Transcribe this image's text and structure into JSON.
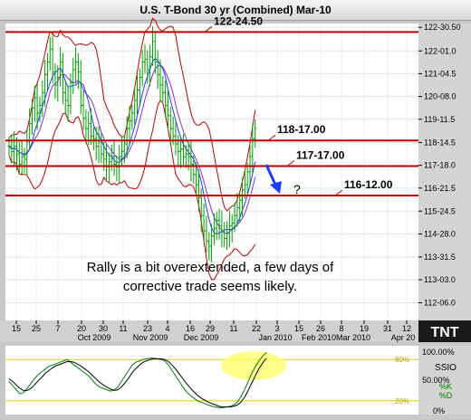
{
  "title": "U.S. T-Bond 30 yr (Combined) Mar-10",
  "chart_data": [
    {
      "type": "ohlc",
      "ylabel": "",
      "ylim": [
        111.5,
        123.1
      ],
      "y_ticks": [
        "122-30.50",
        "122-01.0",
        "121-04.5",
        "120-08.0",
        "119-11.5",
        "118-14.5",
        "117-18.0",
        "116-21.5",
        "115-24.5",
        "114-28.0",
        "113-31.5",
        "113-03.0",
        "112-06.0"
      ],
      "y_tick_values": [
        122.95,
        122.03,
        121.14,
        120.25,
        119.36,
        118.45,
        117.56,
        116.67,
        115.77,
        114.88,
        113.98,
        113.09,
        112.19
      ],
      "x_day_ticks": [
        "15",
        "25",
        "7",
        "20",
        "30",
        "11",
        "23",
        "4",
        "16",
        "29",
        "11",
        "22",
        "3",
        "15",
        "26",
        "8",
        "19",
        "31",
        "12"
      ],
      "x_month_labels": [
        "Oct 2009",
        "Nov 2009",
        "Dec 2009",
        "Jan 2010",
        "Feb 2010",
        "Mar 2010",
        "Apr 20"
      ],
      "closes": [
        118.3,
        118.1,
        118.3,
        118.0,
        117.6,
        117.9,
        117.8,
        118.5,
        119.2,
        119.8,
        120.2,
        119.6,
        119.9,
        120.4,
        121.1,
        121.6,
        122.1,
        121.2,
        120.7,
        121.0,
        121.6,
        120.4,
        120.1,
        119.9,
        120.8,
        121.3,
        121.6,
        121.2,
        119.9,
        119.4,
        119.0,
        119.2,
        118.7,
        118.6,
        118.3,
        118.5,
        118.0,
        117.8,
        117.5,
        117.7,
        117.9,
        117.6,
        117.5,
        117.9,
        118.1,
        118.4,
        119.0,
        119.3,
        119.6,
        120.1,
        120.5,
        121.0,
        121.6,
        121.7,
        121.3,
        121.8,
        122.4,
        121.6,
        121.1,
        120.7,
        120.4,
        119.9,
        119.5,
        119.0,
        118.7,
        118.4,
        118.1,
        118.2,
        117.9,
        118.0,
        117.9,
        117.6,
        117.2,
        116.8,
        116.3,
        115.6,
        115.0,
        114.6,
        114.4,
        114.8,
        115.1,
        115.4,
        115.2,
        115.0,
        114.7,
        114.9,
        115.2,
        115.3,
        115.6,
        115.9,
        116.2,
        116.6,
        116.8,
        117.3,
        117.9,
        118.6,
        119.0
      ],
      "levels": [
        {
          "label": "122-24.50",
          "value": 122.77
        },
        {
          "label": "118-17.00",
          "value": 118.53
        },
        {
          "label": "117-17.00",
          "value": 117.53
        },
        {
          "label": "116-12.00",
          "value": 116.38
        }
      ],
      "question_mark": "?",
      "annotation": [
        "Rally is a  bit overextended, a few days of",
        "corrective trade seems likely."
      ]
    },
    {
      "type": "line",
      "indicator": "SSIO",
      "ylim": [
        0,
        100
      ],
      "y_ticks": [
        "100.00%",
        "50.00%",
        "0%"
      ],
      "level_labels": [
        "80%",
        "20%"
      ],
      "series": [
        {
          "name": "%K",
          "color": "#008000",
          "values": [
            48,
            42,
            36,
            30,
            32,
            38,
            45,
            52,
            58,
            62,
            66,
            70,
            72,
            74,
            76,
            78,
            80,
            76,
            72,
            68,
            64,
            60,
            56,
            50,
            44,
            40,
            38,
            36,
            34,
            36,
            40,
            48,
            56,
            64,
            72,
            76,
            78,
            80,
            81,
            82,
            82,
            81,
            80,
            78,
            72,
            64,
            56,
            48,
            40,
            33,
            28,
            24,
            20,
            18,
            16,
            14,
            12,
            11,
            10,
            10,
            11,
            12,
            14,
            18,
            26,
            36,
            48,
            60,
            70,
            78,
            85,
            90
          ]
        },
        {
          "name": "%D",
          "color": "#000000",
          "values": [
            52,
            48,
            43,
            38,
            35,
            35,
            38,
            43,
            49,
            54,
            60,
            64,
            68,
            71,
            73,
            75,
            77,
            77,
            76,
            73,
            70,
            66,
            62,
            57,
            52,
            47,
            43,
            40,
            37,
            35,
            36,
            40,
            46,
            53,
            61,
            67,
            72,
            76,
            78,
            80,
            81,
            81,
            81,
            80,
            77,
            72,
            66,
            59,
            52,
            45,
            39,
            33,
            28,
            24,
            21,
            18,
            16,
            14,
            12,
            11,
            11,
            11,
            12,
            14,
            18,
            25,
            35,
            46,
            57,
            67,
            75,
            82
          ]
        }
      ]
    }
  ],
  "logo": "TNT"
}
